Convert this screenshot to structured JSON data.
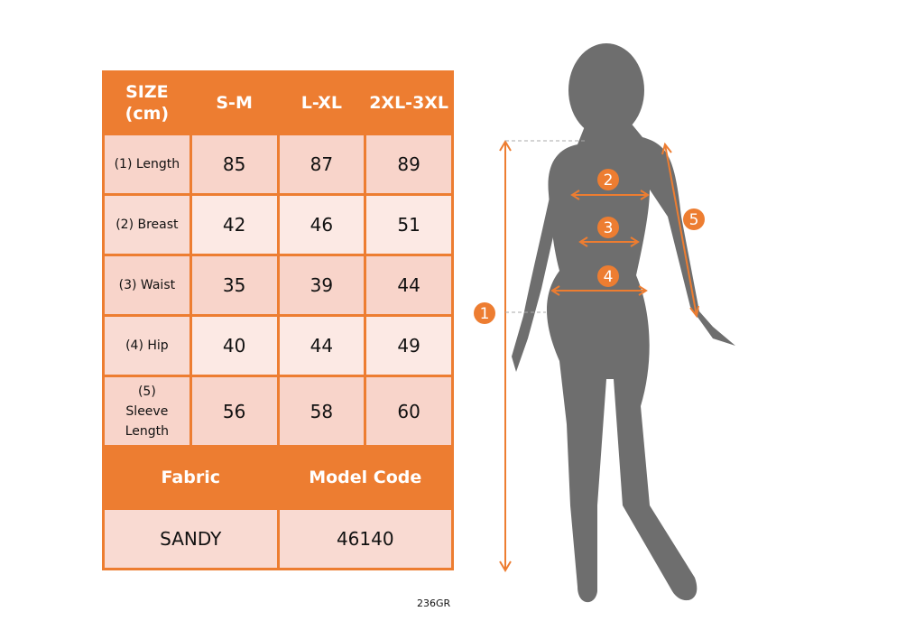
{
  "table": {
    "headers": [
      "SIZE (cm)",
      "S-M",
      "L-XL",
      "2XL-3XL"
    ],
    "rows": [
      {
        "label": "(1) Length",
        "values": [
          "85",
          "87",
          "89"
        ]
      },
      {
        "label": "(2) Breast",
        "values": [
          "42",
          "46",
          "51"
        ]
      },
      {
        "label": "(3) Waist",
        "values": [
          "35",
          "39",
          "44"
        ]
      },
      {
        "label": "(4) Hip",
        "values": [
          "40",
          "44",
          "49"
        ]
      },
      {
        "label": "(5) Sleeve Length",
        "values": [
          "56",
          "58",
          "60"
        ]
      }
    ],
    "footer_headers": [
      "Fabric",
      "Model Code"
    ],
    "footer_values": [
      "SANDY",
      "46140"
    ]
  },
  "product_code": "236GR",
  "markers": [
    "1",
    "2",
    "3",
    "4",
    "5"
  ],
  "colors": {
    "accent": "#ed7d31",
    "silhouette": "#6e6e6e"
  }
}
